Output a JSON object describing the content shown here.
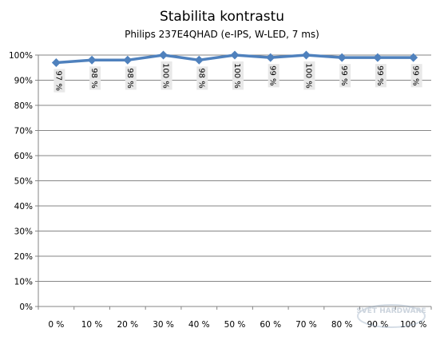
{
  "chart_data": {
    "type": "line",
    "title": "Stabilita kontrastu",
    "subtitle": "Philips 237E4QHAD (e-IPS, W-LED, 7 ms)",
    "categories": [
      "0 %",
      "10 %",
      "20 %",
      "30 %",
      "40 %",
      "50 %",
      "60 %",
      "70 %",
      "80 %",
      "90 %",
      "100 %"
    ],
    "values": [
      97,
      98,
      98,
      100,
      98,
      100,
      99,
      100,
      99,
      99,
      99
    ],
    "data_labels": [
      "97 %",
      "98 %",
      "98 %",
      "100 %",
      "98 %",
      "100 %",
      "99 %",
      "100 %",
      "99 %",
      "99 %",
      "99 %"
    ],
    "y_ticks": [
      "0%",
      "10%",
      "20%",
      "30%",
      "40%",
      "50%",
      "60%",
      "70%",
      "80%",
      "90%",
      "100%"
    ],
    "ylim": [
      0,
      100
    ],
    "grid": true,
    "legend": false,
    "colors": {
      "line": "#4f81bd",
      "marker": "#4f81bd",
      "grid": "#868686",
      "label_bg": "#e8e8e8"
    }
  },
  "watermark": "SVĚT HARDWARE"
}
